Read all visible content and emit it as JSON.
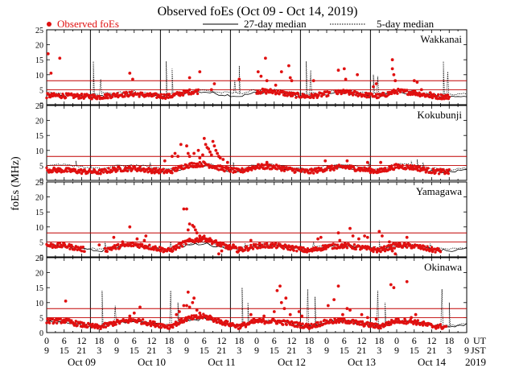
{
  "chart_data": {
    "type": "scatter",
    "title": "Observed foEs (Oct 09 - Oct 14, 2019)",
    "ylabel": "foEs (MHz)",
    "ylim": [
      0,
      25
    ],
    "yticks": [
      0,
      5,
      10,
      15,
      20,
      25
    ],
    "legend": {
      "placement": "top",
      "observed": "Observed foEs",
      "median27": "27-day median",
      "median5": "5-day median"
    },
    "x_axis": {
      "ut_label": "UT",
      "jst_label": "JST",
      "year": "2019",
      "ut_ticks": [
        "0",
        "6",
        "12",
        "18",
        "0",
        "6",
        "12",
        "18",
        "0",
        "6",
        "12",
        "18",
        "0",
        "6",
        "12",
        "18",
        "0",
        "6",
        "12",
        "18",
        "0",
        "6",
        "12",
        "18",
        "0"
      ],
      "jst_ticks": [
        "9",
        "15",
        "21",
        "3",
        "9",
        "15",
        "21",
        "3",
        "9",
        "15",
        "21",
        "3",
        "9",
        "15",
        "21",
        "3",
        "9",
        "15",
        "21",
        "3",
        "9",
        "15",
        "21",
        "3",
        "9"
      ],
      "days": [
        "Oct 09",
        "Oct 10",
        "Oct 11",
        "Oct 12",
        "Oct 13",
        "Oct 14"
      ]
    },
    "colors": {
      "observed": "#e01010",
      "median": "#000000",
      "threshold": "#c00000"
    },
    "panels": [
      {
        "station": "Wakkanai",
        "thresholds": [
          5,
          8
        ],
        "typical": [
          3.0,
          3.0,
          2.8,
          2.6,
          3.3,
          3.6,
          3.0,
          2.8,
          4.2,
          4.6,
          3.5,
          2.8,
          4.5,
          4.4,
          3.3,
          2.7,
          3.6,
          4.2,
          3.4,
          2.8,
          4.5,
          4.0,
          2.8,
          2.6
        ],
        "observed_ranges": [
          [
            0,
            52
          ],
          [
            72,
            97
          ],
          [
            99,
            138
          ]
        ],
        "outliers": [
          [
            0.5,
            17
          ],
          [
            1.5,
            10.5
          ],
          [
            4.5,
            15.5
          ],
          [
            28.5,
            10.5
          ],
          [
            29.5,
            8.5
          ],
          [
            49,
            9
          ],
          [
            52.5,
            11
          ],
          [
            56.5,
            5
          ],
          [
            57.5,
            7
          ],
          [
            66,
            8.5
          ],
          [
            72.5,
            11
          ],
          [
            73.5,
            9.5
          ],
          [
            75,
            15.5
          ],
          [
            75.5,
            8
          ],
          [
            78.5,
            6.5
          ],
          [
            80.5,
            11
          ],
          [
            83,
            13
          ],
          [
            83.5,
            9
          ],
          [
            84,
            8
          ],
          [
            91.5,
            8
          ],
          [
            100,
            11.5
          ],
          [
            102,
            12
          ],
          [
            102.5,
            8.5
          ],
          [
            106.5,
            10
          ],
          [
            112,
            6
          ],
          [
            113,
            7
          ],
          [
            118.5,
            15
          ],
          [
            118.5,
            12
          ],
          [
            119,
            10
          ],
          [
            119.5,
            8
          ],
          [
            126,
            8
          ],
          [
            127,
            7.5
          ],
          [
            128.5,
            5
          ],
          [
            131.5,
            4
          ]
        ],
        "median27": [
          3.2,
          2.9,
          2.8,
          2.7,
          3.3,
          3.6,
          3.1,
          2.7,
          3.9,
          4.3,
          3.4,
          2.8,
          4.1,
          4.2,
          3.2,
          2.7,
          3.5,
          4.0,
          3.3,
          2.8,
          4.2,
          3.9,
          2.9,
          2.7,
          3.0
        ],
        "median5": [
          4.0,
          3.5,
          3.5,
          3.8,
          4.0,
          4.3,
          3.5,
          3.5,
          4.5,
          4.8,
          4.0,
          3.8,
          4.8,
          4.8,
          4.0,
          3.6,
          4.2,
          4.6,
          4.0,
          3.6,
          4.8,
          4.5,
          3.5,
          3.5,
          3.6
        ],
        "spikes": [
          [
            16,
            14.5
          ],
          [
            18.5,
            8.5
          ],
          [
            41,
            14.5
          ],
          [
            43,
            12
          ],
          [
            64.5,
            8
          ],
          [
            66,
            13
          ],
          [
            89,
            14.5
          ],
          [
            90.5,
            11.5
          ],
          [
            112,
            10
          ],
          [
            113.5,
            9.5
          ],
          [
            136,
            14.5
          ],
          [
            137.5,
            11
          ]
        ]
      },
      {
        "station": "Kokubunji",
        "thresholds": [
          5,
          8
        ],
        "typical": [
          3.5,
          3.4,
          3.0,
          2.8,
          3.7,
          4.0,
          3.3,
          2.9,
          5.0,
          5.5,
          4.0,
          3.0,
          4.6,
          4.5,
          3.5,
          2.9,
          3.9,
          4.5,
          3.7,
          3.0,
          4.7,
          4.3,
          3.1,
          2.8
        ],
        "observed_ranges": [
          [
            0,
            138
          ]
        ],
        "outliers": [
          [
            40.5,
            6.5
          ],
          [
            43,
            8
          ],
          [
            44,
            9
          ],
          [
            45,
            8
          ],
          [
            46,
            12
          ],
          [
            48,
            11.5
          ],
          [
            48.5,
            9
          ],
          [
            49,
            8
          ],
          [
            50.5,
            9
          ],
          [
            52,
            10
          ],
          [
            52.5,
            7.5
          ],
          [
            53.5,
            8.5
          ],
          [
            54,
            14
          ],
          [
            54.5,
            12
          ],
          [
            55,
            11
          ],
          [
            55.5,
            10.5
          ],
          [
            56,
            9.5
          ],
          [
            56.5,
            8.5
          ],
          [
            57,
            13
          ],
          [
            57.5,
            11.5
          ],
          [
            58,
            10
          ],
          [
            58.5,
            9
          ],
          [
            59,
            8
          ],
          [
            59.5,
            7.5
          ],
          [
            60.5,
            7
          ],
          [
            62,
            6
          ],
          [
            75.5,
            6
          ],
          [
            95.5,
            6.5
          ],
          [
            103,
            6.5
          ],
          [
            110,
            6
          ],
          [
            114.5,
            6
          ]
        ],
        "median27": [
          3.6,
          3.3,
          3.0,
          2.9,
          3.6,
          4.0,
          3.3,
          2.9,
          4.4,
          4.8,
          3.6,
          2.9,
          4.3,
          4.4,
          3.4,
          2.9,
          3.7,
          4.2,
          3.5,
          3.0,
          4.4,
          4.1,
          3.1,
          2.9,
          3.2
        ],
        "median5": [
          4.6,
          5.5,
          4.5,
          3.8,
          4.8,
          5.2,
          4.2,
          3.8,
          5.4,
          5.8,
          4.6,
          3.8,
          5.4,
          5.2,
          4.3,
          3.7,
          4.8,
          5.3,
          4.4,
          3.8,
          5.5,
          5.0,
          4.0,
          3.7,
          4.0
        ],
        "spikes": [
          [
            10,
            6.5
          ],
          [
            15,
            5.5
          ],
          [
            35.5,
            6
          ],
          [
            64,
            6
          ],
          [
            73,
            5.5
          ],
          [
            110.5,
            6
          ],
          [
            125,
            6.5
          ],
          [
            127,
            7
          ],
          [
            129,
            6
          ]
        ]
      },
      {
        "station": "Yamagawa",
        "thresholds": [
          5,
          8
        ],
        "typical": [
          3.8,
          3.8,
          2.6,
          1.8,
          3.4,
          4.2,
          3.2,
          2.0,
          5.0,
          6.2,
          4.0,
          2.2,
          3.7,
          3.8,
          3.0,
          2.0,
          3.4,
          3.8,
          3.0,
          2.2,
          3.9,
          3.6,
          2.4,
          1.8
        ],
        "observed_ranges": [
          [
            0,
            13
          ],
          [
            20,
            135
          ]
        ],
        "outliers": [
          [
            18,
            4
          ],
          [
            23,
            6.5
          ],
          [
            26,
            5
          ],
          [
            28.5,
            10
          ],
          [
            31,
            6
          ],
          [
            33.5,
            5.5
          ],
          [
            34,
            7
          ],
          [
            47,
            16
          ],
          [
            48,
            16
          ],
          [
            48.5,
            9
          ],
          [
            49,
            11
          ],
          [
            50,
            10.5
          ],
          [
            50.5,
            10
          ],
          [
            51,
            9
          ],
          [
            51.5,
            8
          ],
          [
            52.5,
            7
          ],
          [
            53.5,
            6.5
          ],
          [
            54.5,
            6
          ],
          [
            56,
            5.5
          ],
          [
            57.5,
            5
          ],
          [
            58.5,
            4
          ],
          [
            59,
            1
          ],
          [
            60,
            2
          ],
          [
            61.5,
            3
          ],
          [
            64,
            4
          ],
          [
            66,
            3
          ],
          [
            70,
            5.5
          ],
          [
            93,
            6
          ],
          [
            94,
            6.5
          ],
          [
            100,
            8
          ],
          [
            100.5,
            5.5
          ],
          [
            104,
            9.5
          ],
          [
            105,
            7
          ],
          [
            107,
            6
          ],
          [
            109,
            7
          ],
          [
            110,
            6.5
          ],
          [
            114,
            8.5
          ],
          [
            115,
            7
          ],
          [
            117.5,
            5
          ],
          [
            118,
            3.5
          ],
          [
            118.5,
            2
          ],
          [
            119.5,
            1
          ],
          [
            123.5,
            6.5
          ]
        ],
        "median27": [
          3.7,
          3.5,
          2.5,
          2.0,
          3.3,
          3.9,
          3.0,
          2.1,
          3.9,
          4.5,
          3.2,
          2.2,
          3.6,
          3.8,
          2.9,
          2.1,
          3.5,
          3.8,
          3.0,
          2.2,
          3.7,
          3.6,
          2.5,
          2.0,
          2.8
        ],
        "median5": [
          3.9,
          3.8,
          3.0,
          2.6,
          3.6,
          4.1,
          3.4,
          2.8,
          4.2,
          4.6,
          3.6,
          3.0,
          4.0,
          4.1,
          3.3,
          2.8,
          3.8,
          4.1,
          3.4,
          2.9,
          4.0,
          3.9,
          3.0,
          2.7,
          3.2
        ],
        "spikes": [
          [
            20,
            5
          ],
          [
            42.5,
            5
          ],
          [
            68,
            4.5
          ],
          [
            91.5,
            5
          ],
          [
            114,
            5.5
          ],
          [
            131.5,
            4.5
          ]
        ]
      },
      {
        "station": "Okinawa",
        "thresholds": [
          5,
          8
        ],
        "typical": [
          3.8,
          4.0,
          2.6,
          1.8,
          3.4,
          4.2,
          3.0,
          2.0,
          4.6,
          5.4,
          3.5,
          2.0,
          3.8,
          3.8,
          3.0,
          2.0,
          3.6,
          4.0,
          3.0,
          2.0,
          4.0,
          3.6,
          2.2,
          1.8
        ],
        "observed_ranges": [
          [
            0,
            137
          ]
        ],
        "outliers": [
          [
            6.5,
            10.5
          ],
          [
            28.5,
            5.5
          ],
          [
            30,
            6.5
          ],
          [
            32,
            8.5
          ],
          [
            44.5,
            6
          ],
          [
            45.5,
            7
          ],
          [
            47,
            9
          ],
          [
            48,
            9
          ],
          [
            48.5,
            13.5
          ],
          [
            49,
            8.5
          ],
          [
            50,
            10
          ],
          [
            50.5,
            11.5
          ],
          [
            51.5,
            7.5
          ],
          [
            52.5,
            6.5
          ],
          [
            56,
            5.5
          ],
          [
            57.5,
            4
          ],
          [
            60.5,
            3
          ],
          [
            70,
            6
          ],
          [
            71,
            4.5
          ],
          [
            73,
            4
          ],
          [
            74.5,
            5.5
          ],
          [
            78,
            7
          ],
          [
            79,
            14
          ],
          [
            80,
            15.5
          ],
          [
            80.5,
            10
          ],
          [
            81.5,
            8
          ],
          [
            82,
            11.5
          ],
          [
            83.5,
            6
          ],
          [
            86.5,
            7
          ],
          [
            87.5,
            5.5
          ],
          [
            96.5,
            9
          ],
          [
            98.5,
            11
          ],
          [
            100,
            15.5
          ],
          [
            101.5,
            6
          ],
          [
            103,
            8
          ],
          [
            104,
            7.5
          ],
          [
            108,
            6
          ],
          [
            110,
            5
          ],
          [
            113,
            4.5
          ],
          [
            118,
            16
          ],
          [
            119,
            15
          ],
          [
            123.5,
            17
          ],
          [
            125,
            5
          ],
          [
            126.5,
            6
          ]
        ],
        "median27": [
          3.6,
          3.5,
          2.5,
          2.0,
          3.3,
          3.9,
          3.0,
          2.1,
          4.0,
          4.6,
          3.3,
          2.1,
          3.7,
          3.8,
          3.0,
          2.1,
          3.6,
          3.9,
          3.0,
          2.1,
          3.8,
          3.6,
          2.4,
          2.0,
          2.8
        ],
        "median5": [
          3.8,
          3.6,
          2.7,
          2.2,
          3.5,
          4.0,
          3.1,
          2.3,
          4.2,
          4.8,
          3.5,
          2.3,
          3.9,
          4.0,
          3.2,
          2.3,
          3.8,
          4.1,
          3.2,
          2.3,
          4.0,
          3.8,
          2.6,
          2.2,
          3.0
        ],
        "spikes": [
          [
            19,
            14
          ],
          [
            23.5,
            9
          ],
          [
            42.5,
            14
          ],
          [
            45,
            10
          ],
          [
            67,
            15
          ],
          [
            69,
            10
          ],
          [
            89.5,
            14.5
          ],
          [
            92,
            12
          ],
          [
            113.5,
            14
          ],
          [
            116,
            10
          ],
          [
            135.5,
            14.5
          ],
          [
            138,
            10
          ]
        ]
      }
    ]
  }
}
